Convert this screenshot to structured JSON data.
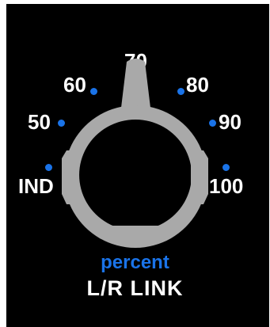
{
  "knob": {
    "name": "L/R LINK",
    "unit": "percent",
    "value": 70,
    "scale": [
      {
        "key": "ind",
        "label": "IND"
      },
      {
        "key": "50",
        "label": "50"
      },
      {
        "key": "60",
        "label": "60"
      },
      {
        "key": "70",
        "label": "70"
      },
      {
        "key": "80",
        "label": "80"
      },
      {
        "key": "90",
        "label": "90"
      },
      {
        "key": "100",
        "label": "100"
      }
    ],
    "pointer_icon": "knob-pointer-icon"
  },
  "colors": {
    "background": "#000000",
    "knob": "#a9a9a9",
    "dot": "#1a73e8",
    "unit_text": "#1a73e8",
    "label_text": "#ffffff"
  }
}
